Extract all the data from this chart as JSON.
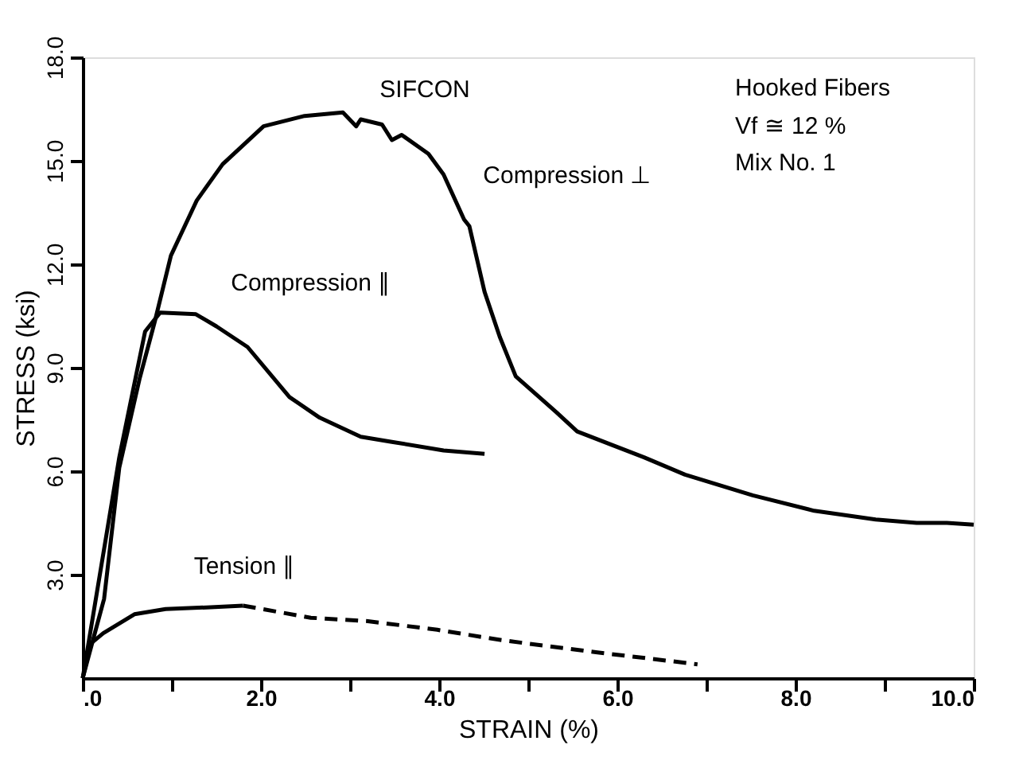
{
  "chart_data": {
    "type": "line",
    "xlabel": "STRAIN (%)",
    "ylabel": "STRESS (ksi)",
    "annotations": [
      "SIFCON",
      "Hooked Fibers",
      "Vf ≅ 12 %",
      "Mix No. 1"
    ],
    "xlim": [
      0,
      10
    ],
    "ylim": [
      0,
      18
    ],
    "xticks": [
      {
        "value": 0,
        "label": ".0"
      },
      {
        "value": 1,
        "label": null
      },
      {
        "value": 2,
        "label": "2.0"
      },
      {
        "value": 3,
        "label": null
      },
      {
        "value": 4,
        "label": "4.0"
      },
      {
        "value": 5,
        "label": null
      },
      {
        "value": 6,
        "label": "6.0"
      },
      {
        "value": 7,
        "label": null
      },
      {
        "value": 8,
        "label": "8.0"
      },
      {
        "value": 9,
        "label": null
      },
      {
        "value": 10,
        "label": "10.0"
      }
    ],
    "yticks": [
      {
        "value": 3,
        "label": "3.0"
      },
      {
        "value": 6,
        "label": "6.0"
      },
      {
        "value": 9,
        "label": "9.0"
      },
      {
        "value": 12,
        "label": "12.0"
      },
      {
        "value": 15,
        "label": "15.0"
      },
      {
        "value": 18,
        "label": "18.0"
      }
    ],
    "grid": false,
    "marker": "none",
    "series": [
      {
        "name": "Compression ⊥",
        "color": "#000000",
        "line_style": "solid",
        "x": [
          0,
          0.24,
          0.41,
          0.64,
          0.81,
          0.99,
          1.28,
          1.57,
          2.03,
          2.49,
          2.92,
          3.07,
          3.12,
          3.36,
          3.47,
          3.58,
          3.88,
          4.05,
          4.28,
          4.34,
          4.51,
          4.68,
          4.86,
          5.32,
          5.55,
          6.3,
          6.76,
          7.52,
          8.21,
          8.9,
          9.36,
          9.7,
          10
        ],
        "values": [
          0,
          2.3,
          6.1,
          8.7,
          10.35,
          12.25,
          13.85,
          14.9,
          16.0,
          16.3,
          16.4,
          16.0,
          16.2,
          16.05,
          15.6,
          15.75,
          15.2,
          14.6,
          13.3,
          13.1,
          11.2,
          9.9,
          8.75,
          7.7,
          7.15,
          6.4,
          5.9,
          5.3,
          4.85,
          4.6,
          4.5,
          4.5,
          4.45
        ]
      },
      {
        "name": "Compression ∥",
        "color": "#000000",
        "line_style": "solid",
        "x": [
          0,
          0.41,
          0.7,
          0.87,
          1.27,
          1.5,
          1.85,
          2.32,
          2.66,
          3.12,
          3.47,
          4.05,
          4.51
        ],
        "values": [
          0,
          6.4,
          10.05,
          10.6,
          10.55,
          10.2,
          9.6,
          8.15,
          7.55,
          7.0,
          6.85,
          6.6,
          6.5
        ]
      },
      {
        "name": "Tension ∥",
        "color": "#000000",
        "line_style": "solid",
        "x": [
          0,
          0.09,
          0.23,
          0.58,
          0.93,
          1.39,
          1.8
        ],
        "values": [
          0,
          1.0,
          1.3,
          1.85,
          2.0,
          2.05,
          2.1
        ]
      },
      {
        "color": "#000000",
        "line_style": "dashed",
        "x": [
          1.8,
          2.56,
          3.2,
          3.98,
          4.7,
          5.76,
          6.9
        ],
        "values": [
          2.1,
          1.75,
          1.65,
          1.4,
          1.1,
          0.75,
          0.4
        ]
      }
    ]
  }
}
